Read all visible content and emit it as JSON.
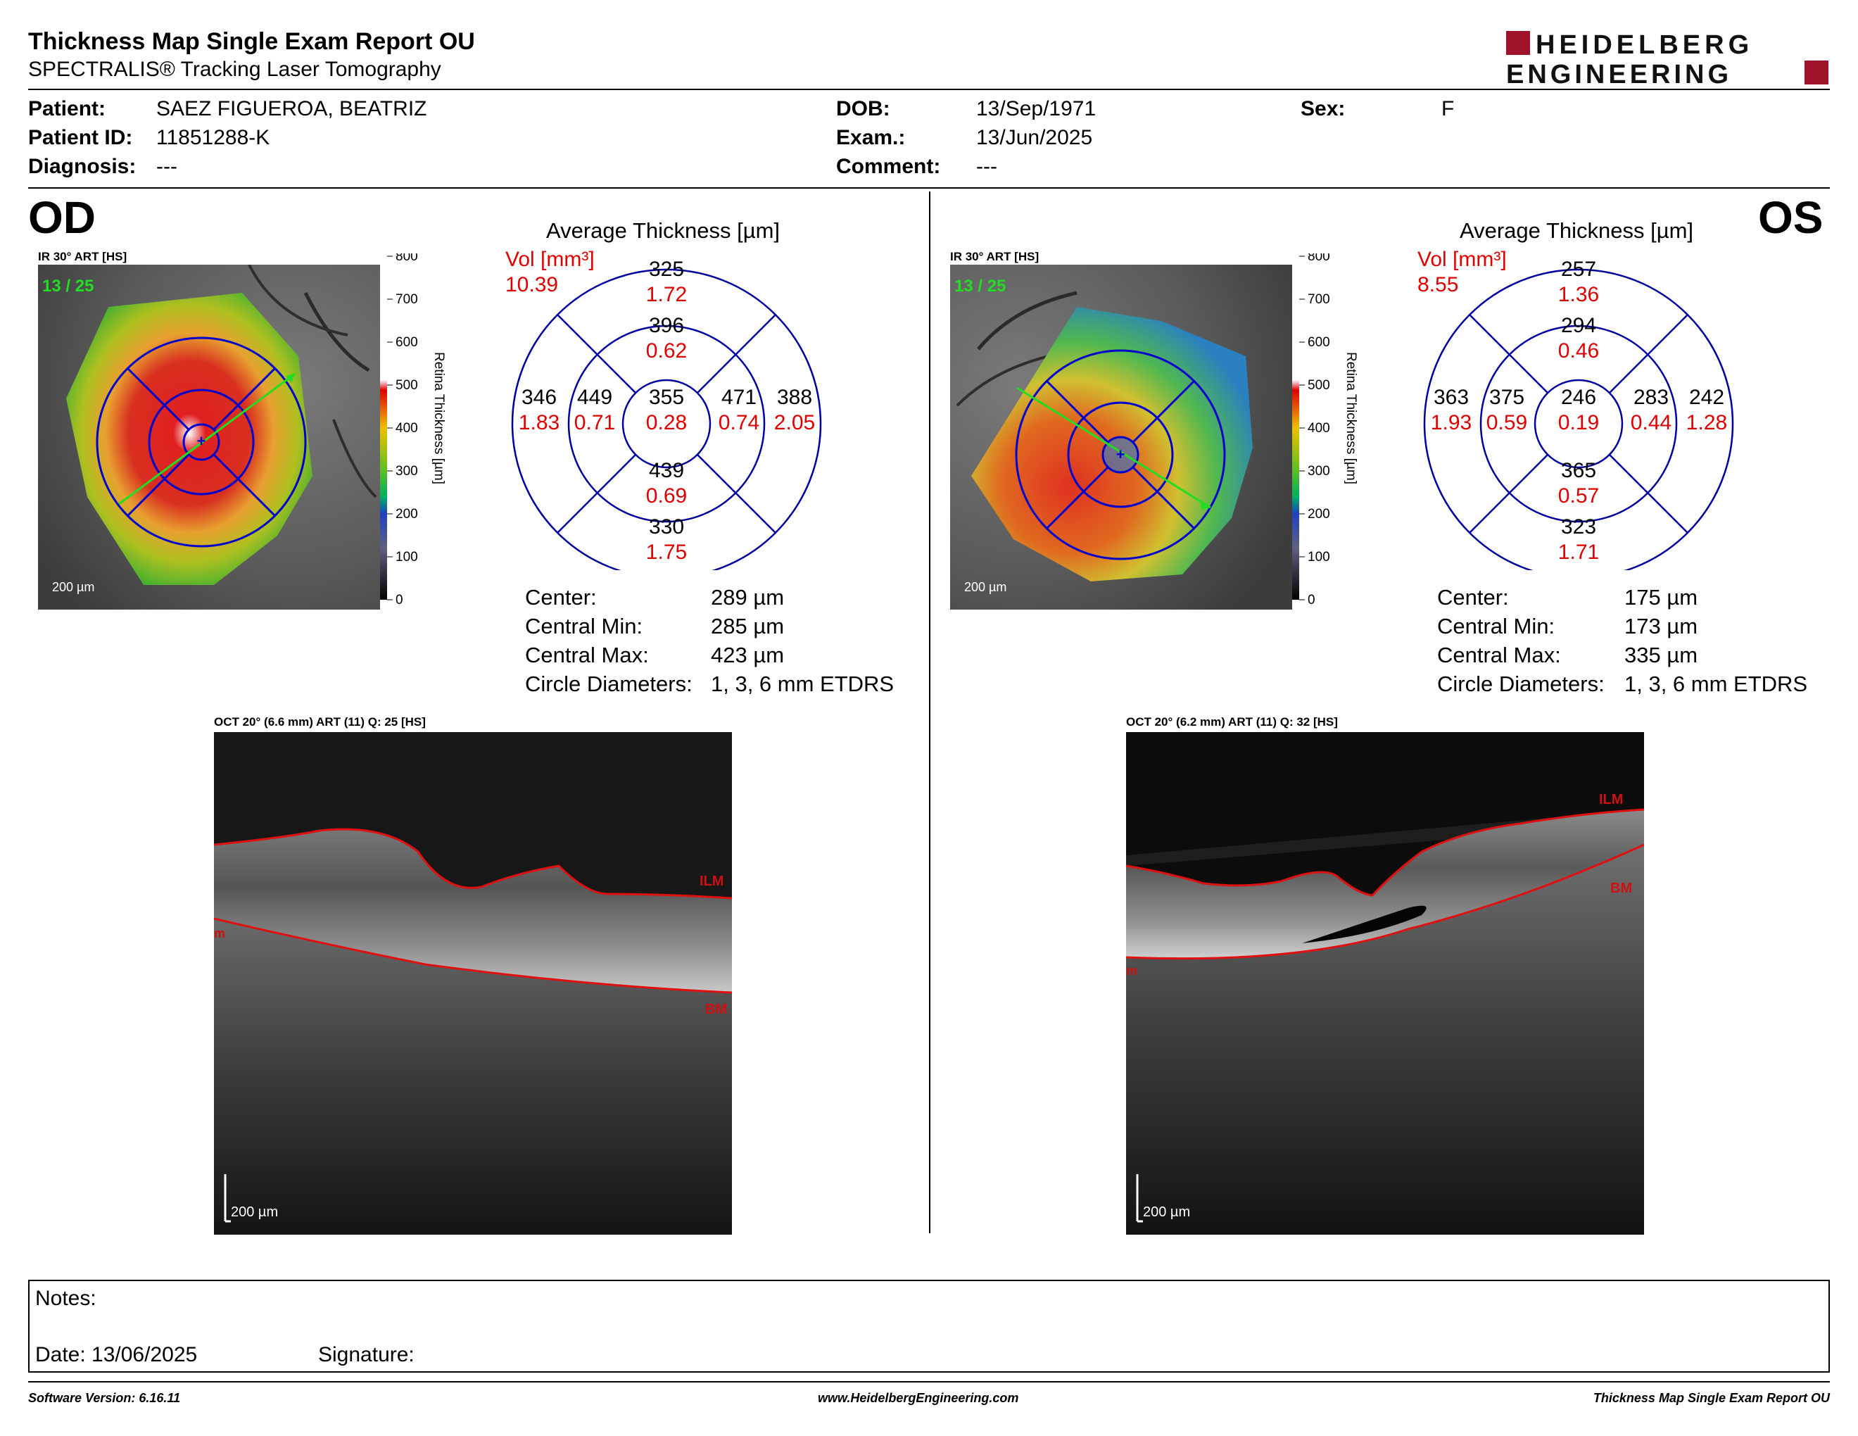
{
  "header": {
    "title": "Thickness Map Single Exam Report OU",
    "subtitle": "SPECTRALIS® Tracking Laser Tomography",
    "logo_line1": "HEIDELBERG",
    "logo_line2": "ENGINEERING"
  },
  "patient": {
    "patient_label": "Patient:",
    "patient_value": "SAEZ FIGUEROA, BEATRIZ",
    "id_label": "Patient ID:",
    "id_value": "11851288-K",
    "diagnosis_label": "Diagnosis:",
    "diagnosis_value": "---",
    "dob_label": "DOB:",
    "dob_value": "13/Sep/1971",
    "exam_label": "Exam.:",
    "exam_value": "13/Jun/2025",
    "comment_label": "Comment:",
    "comment_value": "---",
    "sex_label": "Sex:",
    "sex_value": "F"
  },
  "od": {
    "eye": "OD",
    "ir_label": "IR 30° ART [HS]",
    "frame": "13 / 25",
    "scale": "200 µm",
    "colorbar_ticks": [
      "800",
      "700",
      "600",
      "500",
      "400",
      "300",
      "200",
      "100",
      "0"
    ],
    "colorbar_label": "Retina Thickness [µm]",
    "avg_title": "Average Thickness [µm]",
    "vol_label": "Vol [mm³]",
    "vol_value": "10.39",
    "sectors": {
      "outer_top": {
        "t": "325",
        "v": "1.72"
      },
      "inner_top": {
        "t": "396",
        "v": "0.62"
      },
      "center": {
        "t": "355",
        "v": "0.28"
      },
      "inner_left": {
        "t": "449",
        "v": "0.71"
      },
      "inner_right": {
        "t": "471",
        "v": "0.74"
      },
      "outer_left": {
        "t": "346",
        "v": "1.83"
      },
      "outer_right": {
        "t": "388",
        "v": "2.05"
      },
      "inner_bottom": {
        "t": "439",
        "v": "0.69"
      },
      "outer_bottom": {
        "t": "330",
        "v": "1.75"
      }
    },
    "stats": [
      {
        "label": "Center:",
        "value": "289 µm"
      },
      {
        "label": "Central Min:",
        "value": "285 µm"
      },
      {
        "label": "Central Max:",
        "value": "423 µm"
      },
      {
        "label": "Circle Diameters:",
        "value": "1, 3, 6 mm ETDRS"
      }
    ],
    "oct_label": "OCT 20° (6.6 mm) ART (11) Q: 25 [HS]",
    "oct_scale": "200 µm",
    "ilm": "ILM",
    "bm": "BM",
    "m": "m"
  },
  "os": {
    "eye": "OS",
    "ir_label": "IR 30° ART [HS]",
    "frame": "13 / 25",
    "scale": "200 µm",
    "colorbar_ticks": [
      "800",
      "700",
      "600",
      "500",
      "400",
      "300",
      "200",
      "100",
      "0"
    ],
    "colorbar_label": "Retina Thickness [µm]",
    "avg_title": "Average Thickness [µm]",
    "vol_label": "Vol [mm³]",
    "vol_value": "8.55",
    "sectors": {
      "outer_top": {
        "t": "257",
        "v": "1.36"
      },
      "inner_top": {
        "t": "294",
        "v": "0.46"
      },
      "center": {
        "t": "246",
        "v": "0.19"
      },
      "inner_left": {
        "t": "375",
        "v": "0.59"
      },
      "inner_right": {
        "t": "283",
        "v": "0.44"
      },
      "outer_left": {
        "t": "363",
        "v": "1.93"
      },
      "outer_right": {
        "t": "242",
        "v": "1.28"
      },
      "inner_bottom": {
        "t": "365",
        "v": "0.57"
      },
      "outer_bottom": {
        "t": "323",
        "v": "1.71"
      }
    },
    "stats": [
      {
        "label": "Center:",
        "value": "175 µm"
      },
      {
        "label": "Central Min:",
        "value": "173 µm"
      },
      {
        "label": "Central Max:",
        "value": "335 µm"
      },
      {
        "label": "Circle Diameters:",
        "value": "1, 3, 6 mm ETDRS"
      }
    ],
    "oct_label": "OCT 20° (6.2 mm) ART (11) Q: 32 [HS]",
    "oct_scale": "200 µm",
    "ilm": "ILM",
    "bm": "BM",
    "m": "m"
  },
  "notes": {
    "notes_label": "Notes:",
    "date_label": "Date: 13/06/2025",
    "signature_label": "Signature:"
  },
  "footer": {
    "software": "Software Version: 6.16.11",
    "website": "www.HeidelbergEngineering.com",
    "report": "Thickness Map Single Exam Report OU"
  },
  "colors": {
    "etdrs_grid": "#0000a0",
    "volume_red": "#e00000",
    "frame_green": "#22dd22",
    "logo_red": "#a0112a"
  }
}
